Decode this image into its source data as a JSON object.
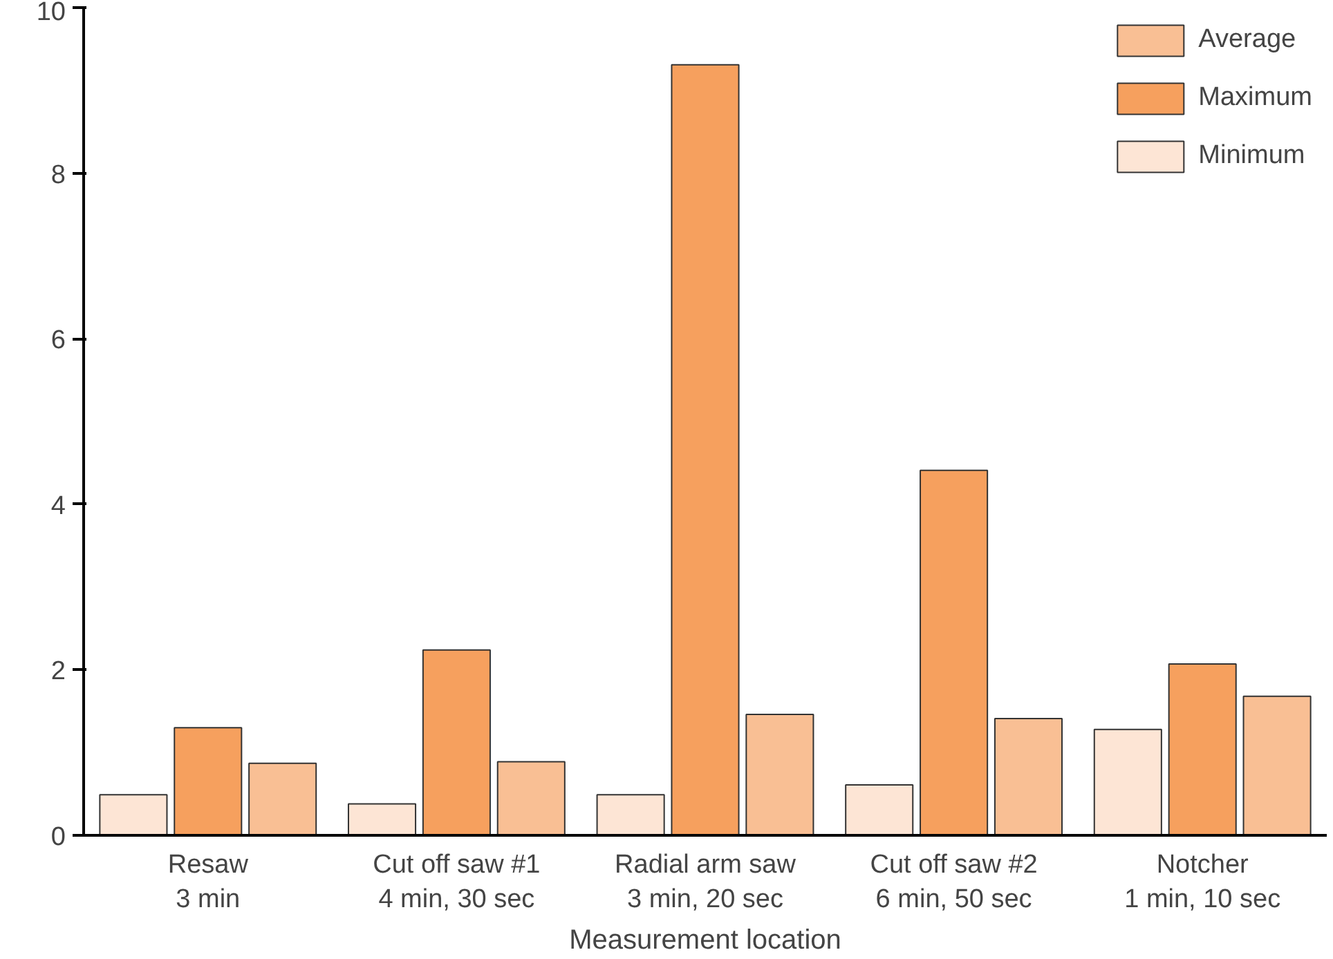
{
  "chart_data": {
    "type": "bar",
    "xlabel": "Measurement location",
    "categories": [
      "Resaw\n3 min",
      "Cut off saw #1\n4 min, 30 sec",
      "Radial arm saw\n3 min, 20 sec",
      "Cut off saw #2\n6 min, 50 sec",
      "Notcher\n1 min, 10 sec"
    ],
    "series": [
      {
        "name": "Minimum",
        "color": "#fde5d5",
        "values": [
          0.49,
          0.38,
          0.49,
          0.61,
          1.28
        ]
      },
      {
        "name": "Maximum",
        "color": "#f6a05e",
        "values": [
          1.3,
          2.24,
          9.31,
          4.41,
          2.07
        ]
      },
      {
        "name": "Average",
        "color": "#f9bf94",
        "values": [
          0.87,
          0.89,
          1.46,
          1.41,
          1.68
        ]
      }
    ],
    "ylim": [
      0,
      10
    ],
    "yticks": [
      0,
      2,
      4,
      6,
      8,
      10
    ],
    "grid": false,
    "legend": "top right"
  }
}
